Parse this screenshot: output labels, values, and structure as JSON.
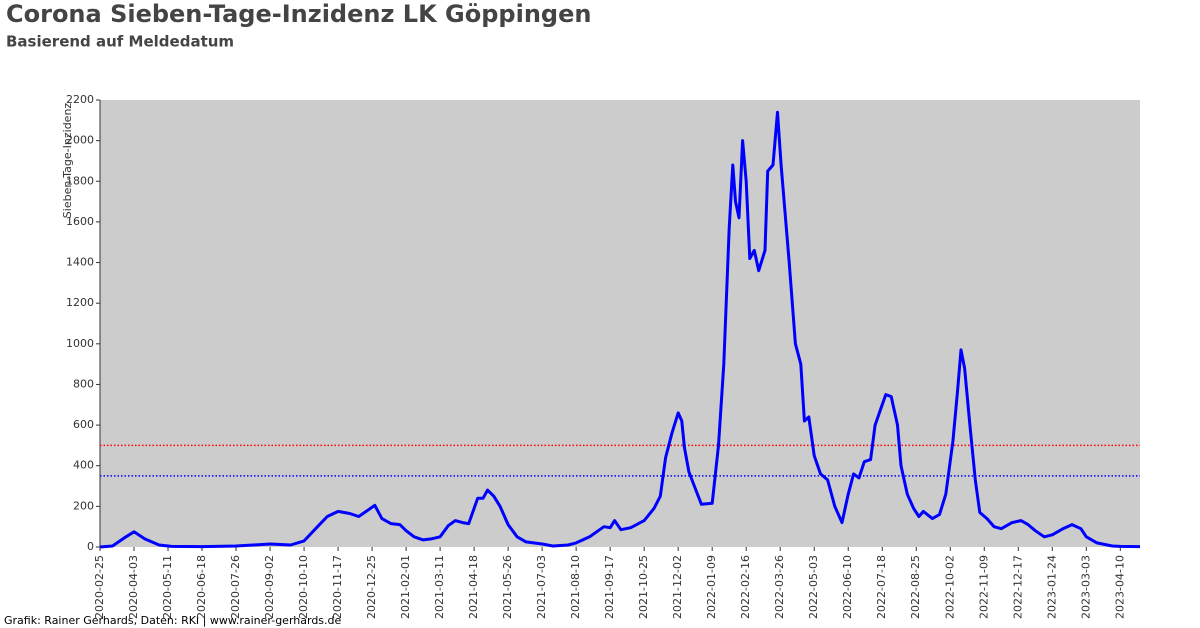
{
  "chart_data": {
    "type": "line",
    "title": "Corona Sieben-Tage-Inzidenz LK Göppingen",
    "subtitle": "Basierend auf Meldedatum",
    "y_label": "Sieben-Tage-Inzidenz",
    "footer": "Grafik: Rainer Gerhards, Daten: RKI | www.rainer-gerhards.de",
    "x": [
      "2020-02-25",
      "2020-03-10",
      "2020-03-25",
      "2020-04-03",
      "2020-04-15",
      "2020-05-01",
      "2020-05-15",
      "2020-06-18",
      "2020-07-26",
      "2020-09-02",
      "2020-09-25",
      "2020-10-10",
      "2020-10-25",
      "2020-11-05",
      "2020-11-17",
      "2020-11-30",
      "2020-12-10",
      "2020-12-20",
      "2020-12-28",
      "2021-01-05",
      "2021-01-15",
      "2021-01-25",
      "2021-02-01",
      "2021-02-10",
      "2021-02-20",
      "2021-03-01",
      "2021-03-11",
      "2021-03-20",
      "2021-03-28",
      "2021-04-05",
      "2021-04-12",
      "2021-04-22",
      "2021-04-28",
      "2021-05-03",
      "2021-05-10",
      "2021-05-17",
      "2021-05-26",
      "2021-06-05",
      "2021-06-15",
      "2021-07-03",
      "2021-07-15",
      "2021-08-01",
      "2021-08-10",
      "2021-08-25",
      "2021-09-10",
      "2021-09-17",
      "2021-09-22",
      "2021-09-29",
      "2021-10-10",
      "2021-10-25",
      "2021-11-05",
      "2021-11-12",
      "2021-11-18",
      "2021-11-25",
      "2021-12-02",
      "2021-12-06",
      "2021-12-09",
      "2021-12-14",
      "2021-12-20",
      "2021-12-28",
      "2022-01-09",
      "2022-01-16",
      "2022-01-22",
      "2022-01-28",
      "2022-02-01",
      "2022-02-04",
      "2022-02-08",
      "2022-02-12",
      "2022-02-16",
      "2022-02-20",
      "2022-02-25",
      "2022-03-02",
      "2022-03-09",
      "2022-03-12",
      "2022-03-18",
      "2022-03-23",
      "2022-03-27",
      "2022-04-05",
      "2022-04-12",
      "2022-04-18",
      "2022-04-22",
      "2022-04-27",
      "2022-05-03",
      "2022-05-10",
      "2022-05-18",
      "2022-05-26",
      "2022-06-03",
      "2022-06-10",
      "2022-06-16",
      "2022-06-22",
      "2022-06-28",
      "2022-07-05",
      "2022-07-10",
      "2022-07-18",
      "2022-07-22",
      "2022-07-28",
      "2022-08-04",
      "2022-08-08",
      "2022-08-15",
      "2022-08-22",
      "2022-08-28",
      "2022-09-02",
      "2022-09-12",
      "2022-09-20",
      "2022-09-27",
      "2022-10-05",
      "2022-10-10",
      "2022-10-14",
      "2022-10-18",
      "2022-10-24",
      "2022-10-30",
      "2022-11-04",
      "2022-11-12",
      "2022-11-20",
      "2022-11-28",
      "2022-12-10",
      "2022-12-20",
      "2022-12-28",
      "2023-01-05",
      "2023-01-15",
      "2023-01-24",
      "2023-02-05",
      "2023-02-15",
      "2023-02-25",
      "2023-03-03",
      "2023-03-15",
      "2023-04-01",
      "2023-04-10",
      "2023-05-02"
    ],
    "series": [
      {
        "name": "Sieben-Tage-Inzidenz",
        "color": "#0000ff",
        "values": [
          0,
          5,
          50,
          75,
          40,
          10,
          3,
          2,
          5,
          15,
          10,
          30,
          100,
          150,
          175,
          165,
          150,
          180,
          205,
          140,
          115,
          110,
          80,
          50,
          35,
          40,
          50,
          105,
          130,
          120,
          115,
          240,
          240,
          280,
          250,
          200,
          110,
          50,
          25,
          15,
          5,
          10,
          20,
          50,
          100,
          95,
          130,
          85,
          95,
          130,
          190,
          250,
          440,
          560,
          660,
          620,
          490,
          370,
          300,
          210,
          215,
          500,
          900,
          1570,
          1880,
          1700,
          1620,
          2000,
          1800,
          1420,
          1460,
          1360,
          1460,
          1850,
          1880,
          2140,
          1880,
          1400,
          1000,
          900,
          620,
          640,
          450,
          360,
          330,
          200,
          120,
          260,
          360,
          340,
          420,
          430,
          600,
          700,
          750,
          740,
          600,
          400,
          260,
          190,
          150,
          175,
          140,
          160,
          260,
          520,
          760,
          970,
          880,
          600,
          330,
          170,
          140,
          100,
          90,
          120,
          130,
          110,
          80,
          50,
          60,
          90,
          110,
          90,
          50,
          20,
          5,
          3,
          2
        ]
      }
    ],
    "hlines": [
      {
        "value": 500,
        "color": "#ff0000"
      },
      {
        "value": 350,
        "color": "#0000ff"
      }
    ],
    "xlim": [
      "2020-02-25",
      "2023-05-02"
    ],
    "xticks": [
      "2020-02-25",
      "2020-04-03",
      "2020-05-11",
      "2020-06-18",
      "2020-07-26",
      "2020-09-02",
      "2020-10-10",
      "2020-11-17",
      "2020-12-25",
      "2021-02-01",
      "2021-03-11",
      "2021-04-18",
      "2021-05-26",
      "2021-07-03",
      "2021-08-10",
      "2021-09-17",
      "2021-10-25",
      "2021-12-02",
      "2022-01-09",
      "2022-02-16",
      "2022-03-26",
      "2022-05-03",
      "2022-06-10",
      "2022-07-18",
      "2022-08-25",
      "2022-10-02",
      "2022-11-09",
      "2022-12-17",
      "2023-01-24",
      "2023-03-03",
      "2023-04-10"
    ],
    "ylim": [
      0,
      2200
    ],
    "yticks": [
      0,
      200,
      400,
      600,
      800,
      1000,
      1200,
      1400,
      1600,
      1800,
      2000,
      2200
    ],
    "plot_background": "#cccccc"
  }
}
